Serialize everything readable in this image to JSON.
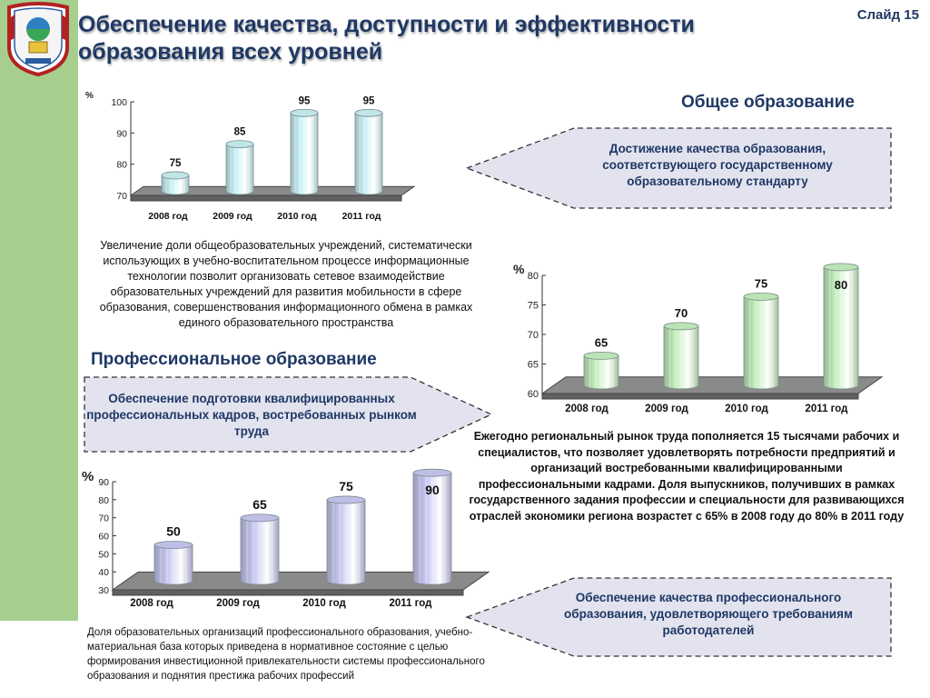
{
  "header": {
    "title_line1": "Обеспечение качества, доступности и эффективности",
    "title_line2": "образования всех уровней",
    "slide_number": "Слайд 15"
  },
  "general": {
    "heading": "Общее образование",
    "callout": "Достижение качества образования, соответствующего государственному образовательному стандарту",
    "description": "Увеличение доли общеобразовательных учреждений, систематически использующих в учебно-воспитательном процессе информационные технологии позволит организовать сетевое взаимодействие образовательных учреждений для развития мобильности в сфере образования, совершенствования информационного обмена в рамках единого образовательного пространства"
  },
  "professional": {
    "heading": "Профессиональное образование",
    "callout_left": "Обеспечение подготовки квалифицированных профессиональных кадров, востребованных рынком труда",
    "callout_right": "Обеспечение качества профессионального образования, удовлетворяющего требованиям работодателей",
    "market_text": "Ежегодно региональный рынок труда пополняется 15 тысячами рабочих и специалистов, что позволяет удовлетворять потребности предприятий и организаций востребованными квалифицированными профессиональными кадрами. Доля выпускников, получивших в рамках государственного задания профессии и специальности для развивающихся отраслей экономики региона возрастет с 65% в 2008 году до 80%  в 2011 году",
    "bottom_text": "Доля образовательных организаций профессионального образования, учебно-материальная база которых приведена в нормативное состояние с целью формирования инвестиционной привлекательности системы профессионального образования и поднятия престижа рабочих профессий"
  },
  "colors": {
    "title": "#1f3864",
    "green_strip": "#a6cf8e",
    "chart1_bar": "#c9f1f5",
    "chart2_bar": "#c4f0be",
    "chart3_bar": "#c8c8f2",
    "floor": "#8a8a8a"
  },
  "chart_data": [
    {
      "type": "bar",
      "unit": "%",
      "categories": [
        "2008 год",
        "2009 год",
        "2010 год",
        "2011 год"
      ],
      "values": [
        75,
        85,
        95,
        95
      ],
      "ylim": [
        70,
        100
      ],
      "yticks": [
        70,
        80,
        90,
        100
      ]
    },
    {
      "type": "bar",
      "unit": "%",
      "categories": [
        "2008 год",
        "2009 год",
        "2010 год",
        "2011 год"
      ],
      "values": [
        65,
        70,
        75,
        80
      ],
      "ylim": [
        60,
        80
      ],
      "yticks": [
        60,
        65,
        70,
        75,
        80
      ]
    },
    {
      "type": "bar",
      "unit": "%",
      "categories": [
        "2008 год",
        "2009 год",
        "2010 год",
        "2011 год"
      ],
      "values": [
        50,
        65,
        75,
        90
      ],
      "ylim": [
        30,
        90
      ],
      "yticks": [
        30,
        40,
        50,
        60,
        70,
        80,
        90
      ]
    }
  ]
}
